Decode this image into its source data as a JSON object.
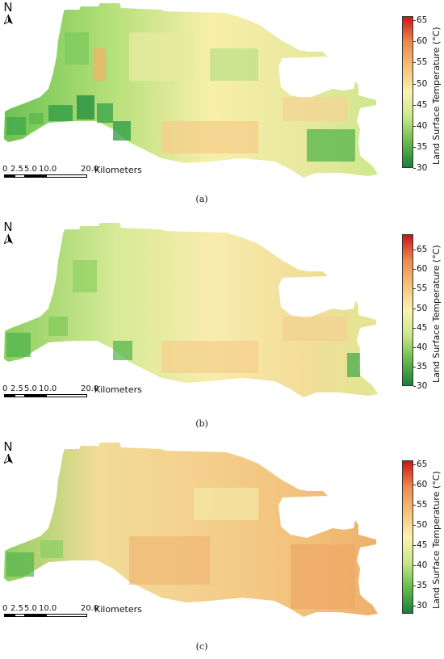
{
  "north_label": "N",
  "scale": {
    "ticks": [
      "0",
      "2.5",
      "5.0",
      "10.0",
      "20.0"
    ],
    "unit": "Kilometers"
  },
  "colorbar": {
    "title": "Land Surface Temperature (°C)",
    "colors": [
      "#1a7f3a",
      "#66bb4a",
      "#c9e88a",
      "#fbf2b0",
      "#f6c07a",
      "#ee8a4a",
      "#c9151d"
    ]
  },
  "panels": [
    {
      "caption": "(a)",
      "vmin": 30,
      "vmax": 66,
      "ticks": [
        "65",
        "60",
        "55",
        "50",
        "45",
        "40",
        "35",
        "30"
      ],
      "tick_values": [
        65,
        60,
        55,
        50,
        45,
        40,
        35,
        30
      ]
    },
    {
      "caption": "(b)",
      "vmin": 30,
      "vmax": 69,
      "ticks": [
        "65",
        "60",
        "55",
        "50",
        "45",
        "40",
        "35",
        "30"
      ],
      "tick_values": [
        65,
        60,
        55,
        50,
        45,
        40,
        35,
        30
      ]
    },
    {
      "caption": "(c)",
      "vmin": 28,
      "vmax": 66,
      "ticks": [
        "65",
        "60",
        "55",
        "50",
        "45",
        "40",
        "35",
        "30"
      ],
      "tick_values": [
        65,
        60,
        55,
        50,
        45,
        40,
        35,
        30
      ]
    }
  ]
}
